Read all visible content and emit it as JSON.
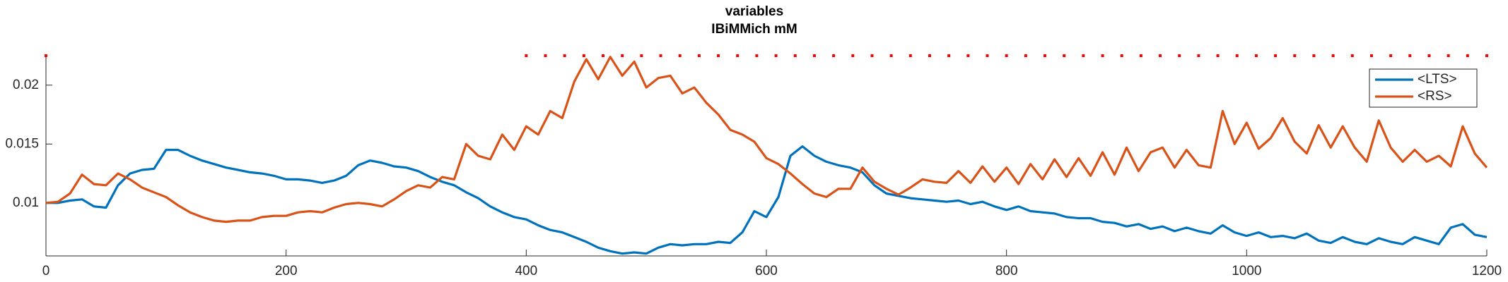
{
  "chart_data": {
    "type": "line",
    "title": "variables",
    "subtitle": "IBiMMich mM",
    "x": [
      0,
      10,
      20,
      30,
      40,
      50,
      60,
      70,
      80,
      90,
      100,
      110,
      120,
      130,
      140,
      150,
      160,
      170,
      180,
      190,
      200,
      210,
      220,
      230,
      240,
      250,
      260,
      270,
      280,
      290,
      300,
      310,
      320,
      330,
      340,
      350,
      360,
      370,
      380,
      390,
      400,
      410,
      420,
      430,
      440,
      450,
      460,
      470,
      480,
      490,
      500,
      510,
      520,
      530,
      540,
      550,
      560,
      570,
      580,
      590,
      600,
      610,
      620,
      630,
      640,
      650,
      660,
      670,
      680,
      690,
      700,
      710,
      720,
      730,
      740,
      750,
      760,
      770,
      780,
      790,
      800,
      810,
      820,
      830,
      840,
      850,
      860,
      870,
      880,
      890,
      900,
      910,
      920,
      930,
      940,
      950,
      960,
      970,
      980,
      990,
      1000,
      1010,
      1020,
      1030,
      1040,
      1050,
      1060,
      1070,
      1080,
      1090,
      1100,
      1110,
      1120,
      1130,
      1140,
      1150,
      1160,
      1170,
      1180,
      1190,
      1200
    ],
    "series": [
      {
        "name": "<LTS>",
        "color": "#0072bd",
        "values": [
          0.01,
          0.01,
          0.0102,
          0.0103,
          0.0097,
          0.0096,
          0.0115,
          0.0125,
          0.0128,
          0.0129,
          0.0145,
          0.0145,
          0.014,
          0.0136,
          0.0133,
          0.013,
          0.0128,
          0.0126,
          0.0125,
          0.0123,
          0.012,
          0.012,
          0.0119,
          0.0117,
          0.0119,
          0.0123,
          0.0132,
          0.0136,
          0.0134,
          0.0131,
          0.013,
          0.0127,
          0.0122,
          0.0118,
          0.0115,
          0.0109,
          0.0104,
          0.0097,
          0.0092,
          0.0088,
          0.0086,
          0.0081,
          0.0077,
          0.0075,
          0.0071,
          0.0067,
          0.0062,
          0.0059,
          0.0057,
          0.0058,
          0.0057,
          0.0062,
          0.0065,
          0.0064,
          0.0065,
          0.0065,
          0.0067,
          0.0066,
          0.0075,
          0.0093,
          0.0088,
          0.0105,
          0.014,
          0.0148,
          0.014,
          0.0135,
          0.0132,
          0.013,
          0.0126,
          0.0115,
          0.0108,
          0.0106,
          0.0104,
          0.0103,
          0.0102,
          0.0101,
          0.0102,
          0.0099,
          0.0101,
          0.0097,
          0.0094,
          0.0097,
          0.0093,
          0.0092,
          0.0091,
          0.0088,
          0.0087,
          0.0087,
          0.0084,
          0.0083,
          0.008,
          0.0082,
          0.0078,
          0.008,
          0.0076,
          0.0079,
          0.0076,
          0.0074,
          0.0081,
          0.0075,
          0.0072,
          0.0075,
          0.0071,
          0.0072,
          0.007,
          0.0074,
          0.0068,
          0.0066,
          0.0071,
          0.0067,
          0.0065,
          0.007,
          0.0067,
          0.0065,
          0.0071,
          0.0068,
          0.0065,
          0.0079,
          0.0082,
          0.0073,
          0.0071
        ]
      },
      {
        "name": "<RS>",
        "color": "#d95319",
        "values": [
          0.01,
          0.0101,
          0.0108,
          0.0124,
          0.0116,
          0.0115,
          0.0125,
          0.012,
          0.0113,
          0.0109,
          0.0105,
          0.0098,
          0.0092,
          0.0088,
          0.0085,
          0.0084,
          0.0085,
          0.0085,
          0.0088,
          0.0089,
          0.0089,
          0.0092,
          0.0093,
          0.0092,
          0.0096,
          0.0099,
          0.01,
          0.0099,
          0.0097,
          0.0103,
          0.011,
          0.0115,
          0.0113,
          0.0122,
          0.012,
          0.015,
          0.014,
          0.0137,
          0.0158,
          0.0145,
          0.0165,
          0.0158,
          0.0178,
          0.0172,
          0.0203,
          0.0222,
          0.0205,
          0.0224,
          0.0208,
          0.022,
          0.0198,
          0.0206,
          0.0208,
          0.0193,
          0.0198,
          0.0185,
          0.0175,
          0.0162,
          0.0158,
          0.0152,
          0.0138,
          0.0133,
          0.0125,
          0.0116,
          0.0108,
          0.0105,
          0.0112,
          0.0112,
          0.013,
          0.0118,
          0.0112,
          0.0107,
          0.0113,
          0.012,
          0.0118,
          0.0117,
          0.0127,
          0.0117,
          0.0131,
          0.0118,
          0.013,
          0.0116,
          0.0133,
          0.012,
          0.0137,
          0.0122,
          0.0138,
          0.0123,
          0.0143,
          0.0124,
          0.0147,
          0.0127,
          0.0143,
          0.0147,
          0.013,
          0.0145,
          0.0132,
          0.013,
          0.0178,
          0.015,
          0.0168,
          0.0146,
          0.0155,
          0.0172,
          0.0152,
          0.0142,
          0.0166,
          0.0147,
          0.0165,
          0.0147,
          0.0135,
          0.017,
          0.0147,
          0.0135,
          0.0145,
          0.0135,
          0.014,
          0.0131,
          0.0165,
          0.0142,
          0.013
        ]
      }
    ],
    "markers": {
      "color": "#ff0000",
      "y": 0.0225,
      "x": [
        0,
        400,
        416,
        432,
        448,
        464,
        480,
        496,
        512,
        528,
        544,
        560,
        576,
        592,
        608,
        624,
        640,
        656,
        672,
        688,
        704,
        720,
        736,
        752,
        768,
        784,
        800,
        816,
        832,
        848,
        864,
        880,
        896,
        912,
        928,
        944,
        960,
        976,
        992,
        1008,
        1024,
        1040,
        1056,
        1072,
        1088,
        1104,
        1120,
        1136,
        1152,
        1168,
        1184,
        1200
      ]
    },
    "xlim": [
      0,
      1200
    ],
    "xticks": [
      0,
      200,
      400,
      600,
      800,
      1000,
      1200
    ],
    "ylim": [
      0.0055,
      0.0225
    ],
    "yticks": [
      0.01,
      0.015,
      0.02
    ],
    "legend": "upper-right"
  }
}
